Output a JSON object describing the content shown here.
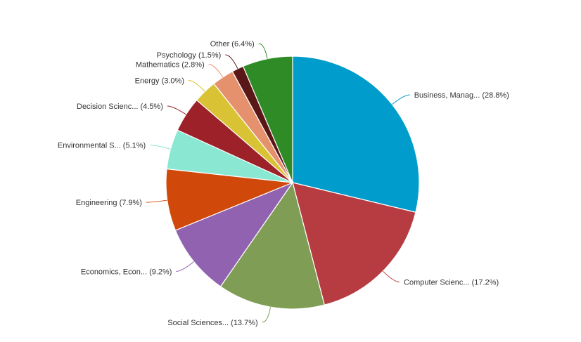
{
  "chart_data": {
    "type": "pie",
    "slices": [
      {
        "label": "Business, Manag... (28.8%)",
        "value": 28.8,
        "color": "#009ccc"
      },
      {
        "label": "Computer Scienc... (17.2%)",
        "value": 17.2,
        "color": "#b73c41"
      },
      {
        "label": "Social Sciences... (13.7%)",
        "value": 13.7,
        "color": "#7f9d54"
      },
      {
        "label": "Economics, Econ... (9.2%)",
        "value": 9.2,
        "color": "#9162b0"
      },
      {
        "label": "Engineering (7.9%)",
        "value": 7.9,
        "color": "#d1490a"
      },
      {
        "label": "Environmental S... (5.1%)",
        "value": 5.1,
        "color": "#8ae8d2"
      },
      {
        "label": "Decision Scienc... (4.5%)",
        "value": 4.5,
        "color": "#9c2129"
      },
      {
        "label": "Energy (3.0%)",
        "value": 3.0,
        "color": "#d9c233"
      },
      {
        "label": "Mathematics (2.8%)",
        "value": 2.8,
        "color": "#e6916e"
      },
      {
        "label": "Psychology (1.5%)",
        "value": 1.5,
        "color": "#5a1717"
      },
      {
        "label": "Other (6.4%)",
        "value": 6.4,
        "color": "#2e8b25"
      }
    ]
  }
}
